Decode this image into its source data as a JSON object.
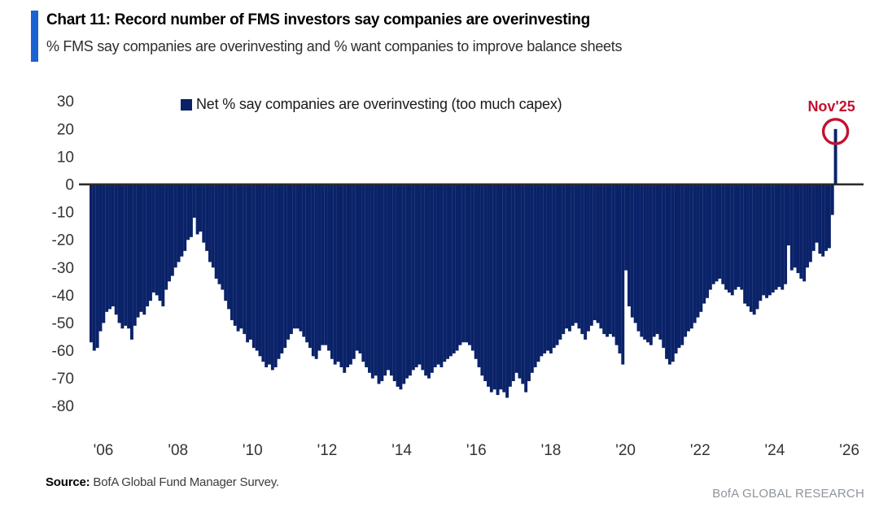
{
  "header": {
    "title": "Chart 11: Record number of FMS investors say companies are overinvesting",
    "subtitle": "% FMS say companies are overinvesting and % want companies to improve balance sheets",
    "accent_color": "#1a62d2"
  },
  "legend": {
    "label": "Net % say companies are overinvesting (too much capex)",
    "swatch_color": "#0a2268"
  },
  "annotation": {
    "label": "Nov'25",
    "color": "#c4122f"
  },
  "footer": {
    "source_label": "Source:",
    "source_text": " BofA Global Fund Manager Survey.",
    "brand": "BofA GLOBAL RESEARCH"
  },
  "chart_data": {
    "type": "bar",
    "title": "Net % say companies are overinvesting (too much capex)",
    "interval": "monthly",
    "start": "2006-01",
    "end": "2025-11",
    "ylim": [
      -80,
      30
    ],
    "yticks": [
      30,
      20,
      10,
      0,
      -10,
      -20,
      -30,
      -40,
      -50,
      -60,
      -70,
      -80
    ],
    "xticks": [
      "'06",
      "'08",
      "'10",
      "'12",
      "'14",
      "'16",
      "'18",
      "'20",
      "'22",
      "'24",
      "'26"
    ],
    "grid": false,
    "legend_position": "top",
    "bar_color": "#0a2268",
    "zero_line_color": "#2b2b2b",
    "highlight_last": {
      "label": "Nov'25",
      "value": 20,
      "ring_color": "#c4122f"
    },
    "values": [
      -57,
      -60,
      -59,
      -53,
      -50,
      -46,
      -45,
      -44,
      -47,
      -50,
      -52,
      -51,
      -52,
      -56,
      -51,
      -48,
      -46,
      -47,
      -44,
      -42,
      -39,
      -40,
      -42,
      -44,
      -38,
      -35,
      -33,
      -30,
      -28,
      -26,
      -24,
      -20,
      -19,
      -12,
      -18,
      -17,
      -21,
      -24,
      -28,
      -30,
      -34,
      -36,
      -38,
      -42,
      -45,
      -49,
      -51,
      -53,
      -52,
      -54,
      -57,
      -56,
      -59,
      -60,
      -62,
      -64,
      -66,
      -65,
      -67,
      -66,
      -63,
      -61,
      -59,
      -56,
      -54,
      -52,
      -52,
      -53,
      -55,
      -57,
      -59,
      -62,
      -63,
      -60,
      -58,
      -58,
      -60,
      -63,
      -65,
      -64,
      -66,
      -68,
      -66,
      -65,
      -63,
      -60,
      -61,
      -64,
      -66,
      -68,
      -70,
      -69,
      -72,
      -71,
      -69,
      -67,
      -69,
      -71,
      -73,
      -74,
      -72,
      -70,
      -69,
      -67,
      -66,
      -65,
      -67,
      -69,
      -70,
      -68,
      -66,
      -65,
      -66,
      -64,
      -63,
      -62,
      -61,
      -60,
      -58,
      -57,
      -57,
      -58,
      -60,
      -63,
      -66,
      -69,
      -71,
      -73,
      -75,
      -74,
      -76,
      -74,
      -75,
      -77,
      -73,
      -71,
      -68,
      -70,
      -72,
      -75,
      -71,
      -68,
      -66,
      -64,
      -62,
      -61,
      -60,
      -61,
      -59,
      -58,
      -56,
      -54,
      -52,
      -53,
      -51,
      -50,
      -52,
      -54,
      -56,
      -53,
      -51,
      -49,
      -50,
      -52,
      -54,
      -55,
      -54,
      -55,
      -58,
      -61,
      -65,
      -31,
      -44,
      -48,
      -50,
      -53,
      -55,
      -56,
      -57,
      -58,
      -55,
      -54,
      -56,
      -59,
      -63,
      -65,
      -64,
      -61,
      -59,
      -58,
      -55,
      -53,
      -52,
      -50,
      -48,
      -46,
      -43,
      -41,
      -38,
      -36,
      -35,
      -34,
      -36,
      -38,
      -39,
      -40,
      -38,
      -37,
      -38,
      -43,
      -44,
      -46,
      -47,
      -45,
      -42,
      -40,
      -41,
      -40,
      -39,
      -38,
      -37,
      -38,
      -36,
      -22,
      -31,
      -30,
      -32,
      -34,
      -35,
      -30,
      -28,
      -24,
      -21,
      -25,
      -26,
      -24,
      -23,
      -11,
      20
    ]
  }
}
